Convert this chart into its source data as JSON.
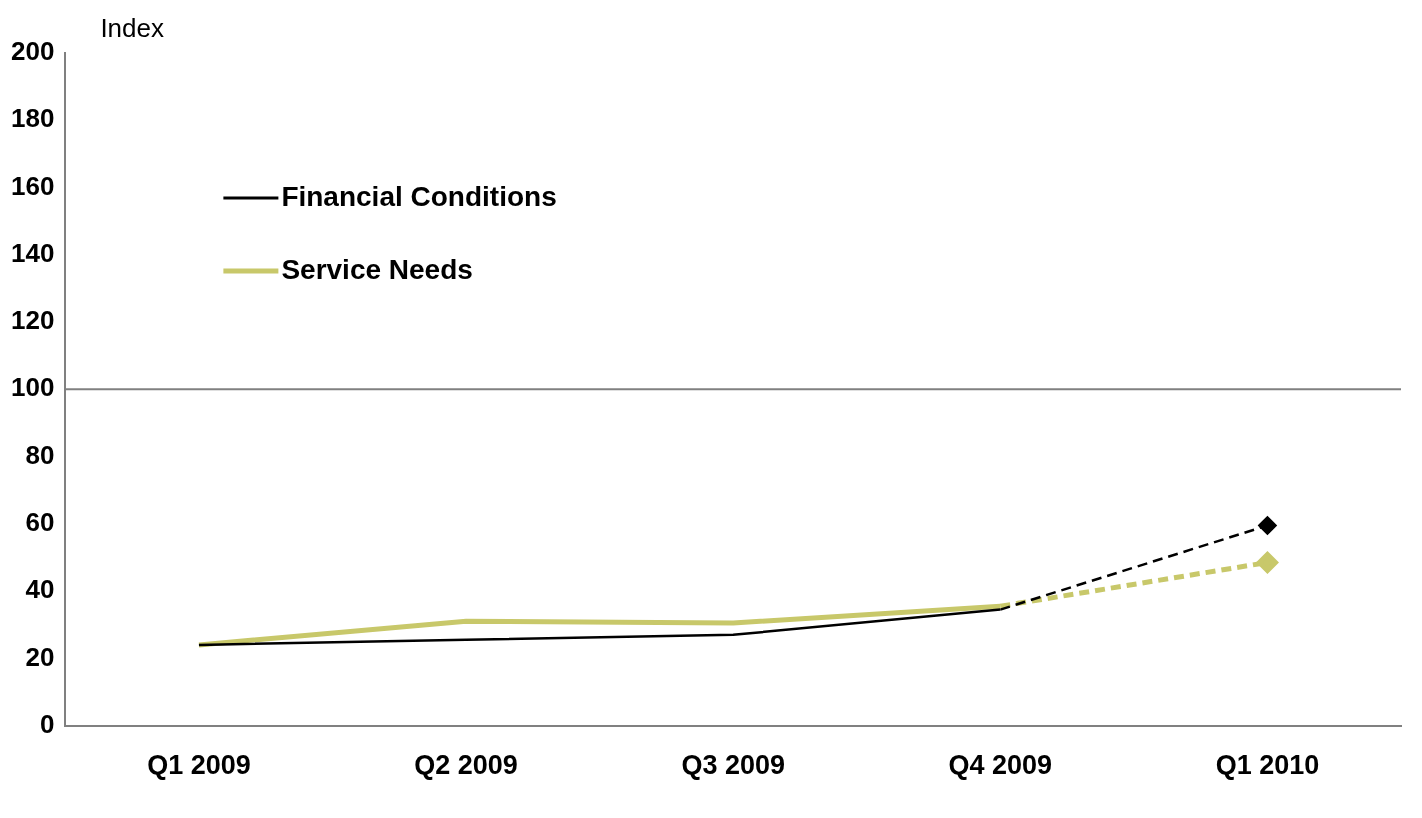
{
  "chart_data": {
    "type": "line",
    "ylabel": "Index",
    "categories": [
      "Q1 2009",
      "Q2 2009",
      "Q3 2009",
      "Q4 2009",
      "Q1 2010"
    ],
    "series": [
      {
        "name": "Financial Conditions",
        "color": "#000000",
        "values": [
          24,
          25.5,
          27,
          34.5,
          null
        ],
        "line_style": "solid",
        "marker": "none"
      },
      {
        "name": "Service Needs",
        "color": "#c8c86a",
        "values": [
          24,
          31,
          30.5,
          35.5,
          null
        ],
        "line_style": "solid",
        "marker": "none"
      },
      {
        "color": "#000000",
        "values": [
          null,
          null,
          null,
          34.5,
          59.5
        ],
        "line_style": "dashed",
        "marker": "diamond"
      },
      {
        "color": "#c8c86a",
        "values": [
          null,
          null,
          null,
          35.5,
          48.5
        ],
        "line_style": "dashed",
        "marker": "diamond"
      }
    ],
    "ylim": [
      0,
      200
    ],
    "yticks": [
      0,
      20,
      40,
      60,
      80,
      100,
      120,
      140,
      160,
      180,
      200
    ],
    "ref_lines": [
      {
        "axis": "y",
        "value": 100,
        "color": "#808080"
      }
    ],
    "grid": false,
    "legend": "top left"
  }
}
